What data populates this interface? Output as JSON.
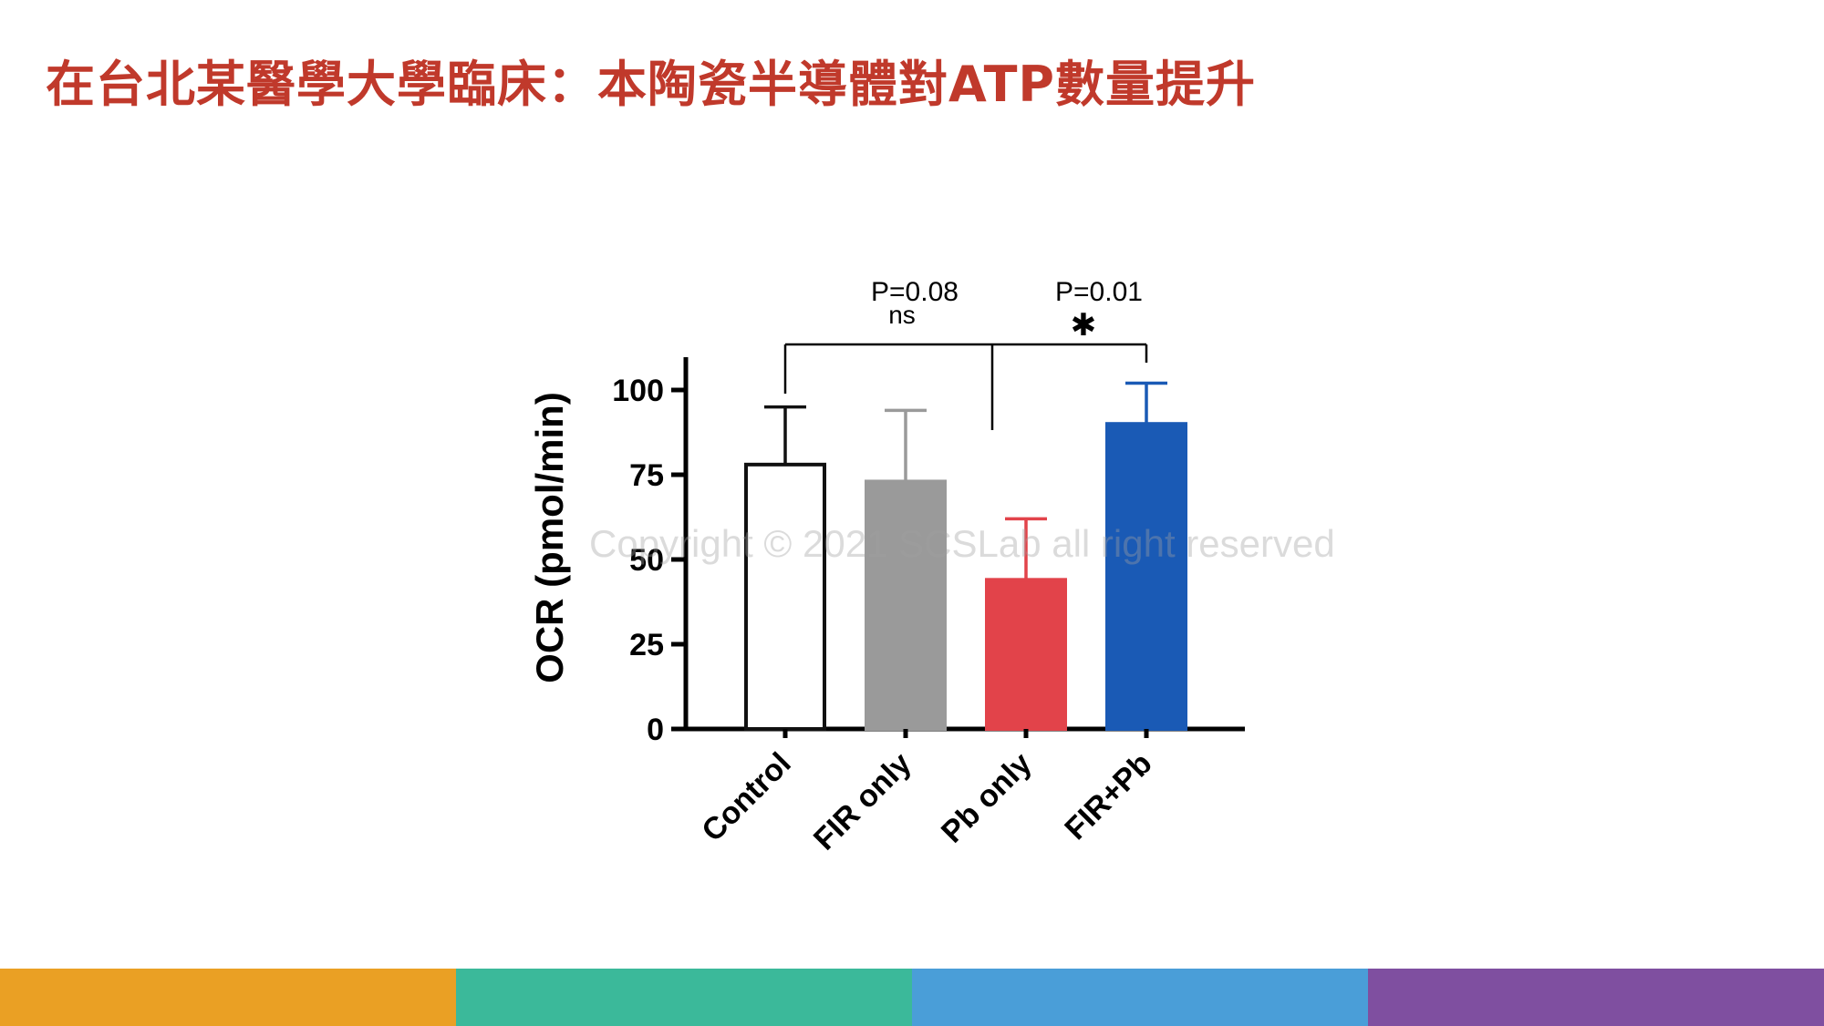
{
  "slide": {
    "title": "在台北某醫學大學臨床：本陶瓷半導體對ATP數量提升",
    "watermark": "Copyright © 2021 SCSLab all right reserved",
    "footer_colors": [
      "#eaa024",
      "#3bb99a",
      "#4a9ed8",
      "#7f4fa0"
    ]
  },
  "chart_data": {
    "type": "bar",
    "title": "",
    "xlabel": "",
    "ylabel": "OCR (pmol/min)",
    "ylim": [
      0,
      110
    ],
    "yticks": [
      0,
      25,
      50,
      75,
      100
    ],
    "categories": [
      "Control",
      "FIR only",
      "Pb only",
      "FIR+Pb"
    ],
    "values": [
      78,
      73,
      44,
      90
    ],
    "errors": [
      17,
      21,
      18,
      12
    ],
    "colors": [
      "#ffffff",
      "#9a9a9a",
      "#e2434a",
      "#1a5ab5"
    ],
    "edge_colors": [
      "#111111",
      "#9a9a9a",
      "#e2434a",
      "#1a5ab5"
    ],
    "error_colors": [
      "#111111",
      "#9a9a9a",
      "#e2434a",
      "#1a5ab5"
    ],
    "annotations": [
      {
        "label": "P=0.08",
        "sig": "ns",
        "from": "Control",
        "to": "Pb only"
      },
      {
        "label": "P=0.01",
        "sig": "✱",
        "from": "Control",
        "to": "FIR+Pb"
      }
    ]
  }
}
